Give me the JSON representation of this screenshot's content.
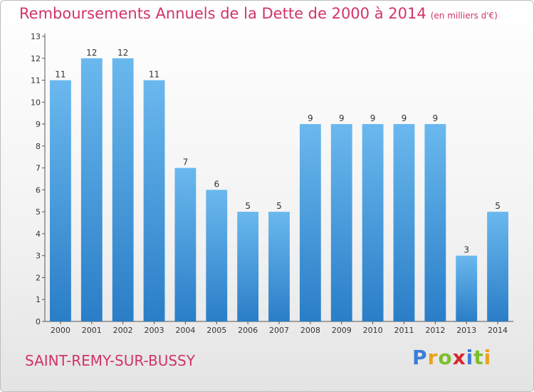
{
  "title": "Remboursements Annuels de la Dette de 2000 à 2014",
  "title_unit": "(en milliers d'€)",
  "commune": "SAINT-REMY-SUR-BUSSY",
  "logo": {
    "letters": [
      "P",
      "r",
      "o",
      "x",
      "i",
      "t",
      "i"
    ],
    "colors": [
      "#3b7dd8",
      "#e8a21d",
      "#7bbf2a",
      "#d7262b",
      "#3b7dd8",
      "#7bbf2a",
      "#e8a21d"
    ]
  },
  "colors": {
    "bar_light": "#6ab8ee",
    "bar_dark": "#2a7ec7",
    "title": "#d1336b"
  },
  "chart_data": {
    "type": "bar",
    "categories": [
      "2000",
      "2001",
      "2002",
      "2003",
      "2004",
      "2005",
      "2006",
      "2007",
      "2008",
      "2009",
      "2010",
      "2011",
      "2012",
      "2013",
      "2014"
    ],
    "values": [
      11,
      12,
      12,
      11,
      7,
      6,
      5,
      5,
      9,
      9,
      9,
      9,
      9,
      3,
      5
    ],
    "yticks": [
      0,
      1,
      2,
      3,
      4,
      5,
      6,
      7,
      8,
      9,
      10,
      11,
      12,
      13
    ],
    "ylim": [
      0,
      13
    ],
    "grid": false
  }
}
